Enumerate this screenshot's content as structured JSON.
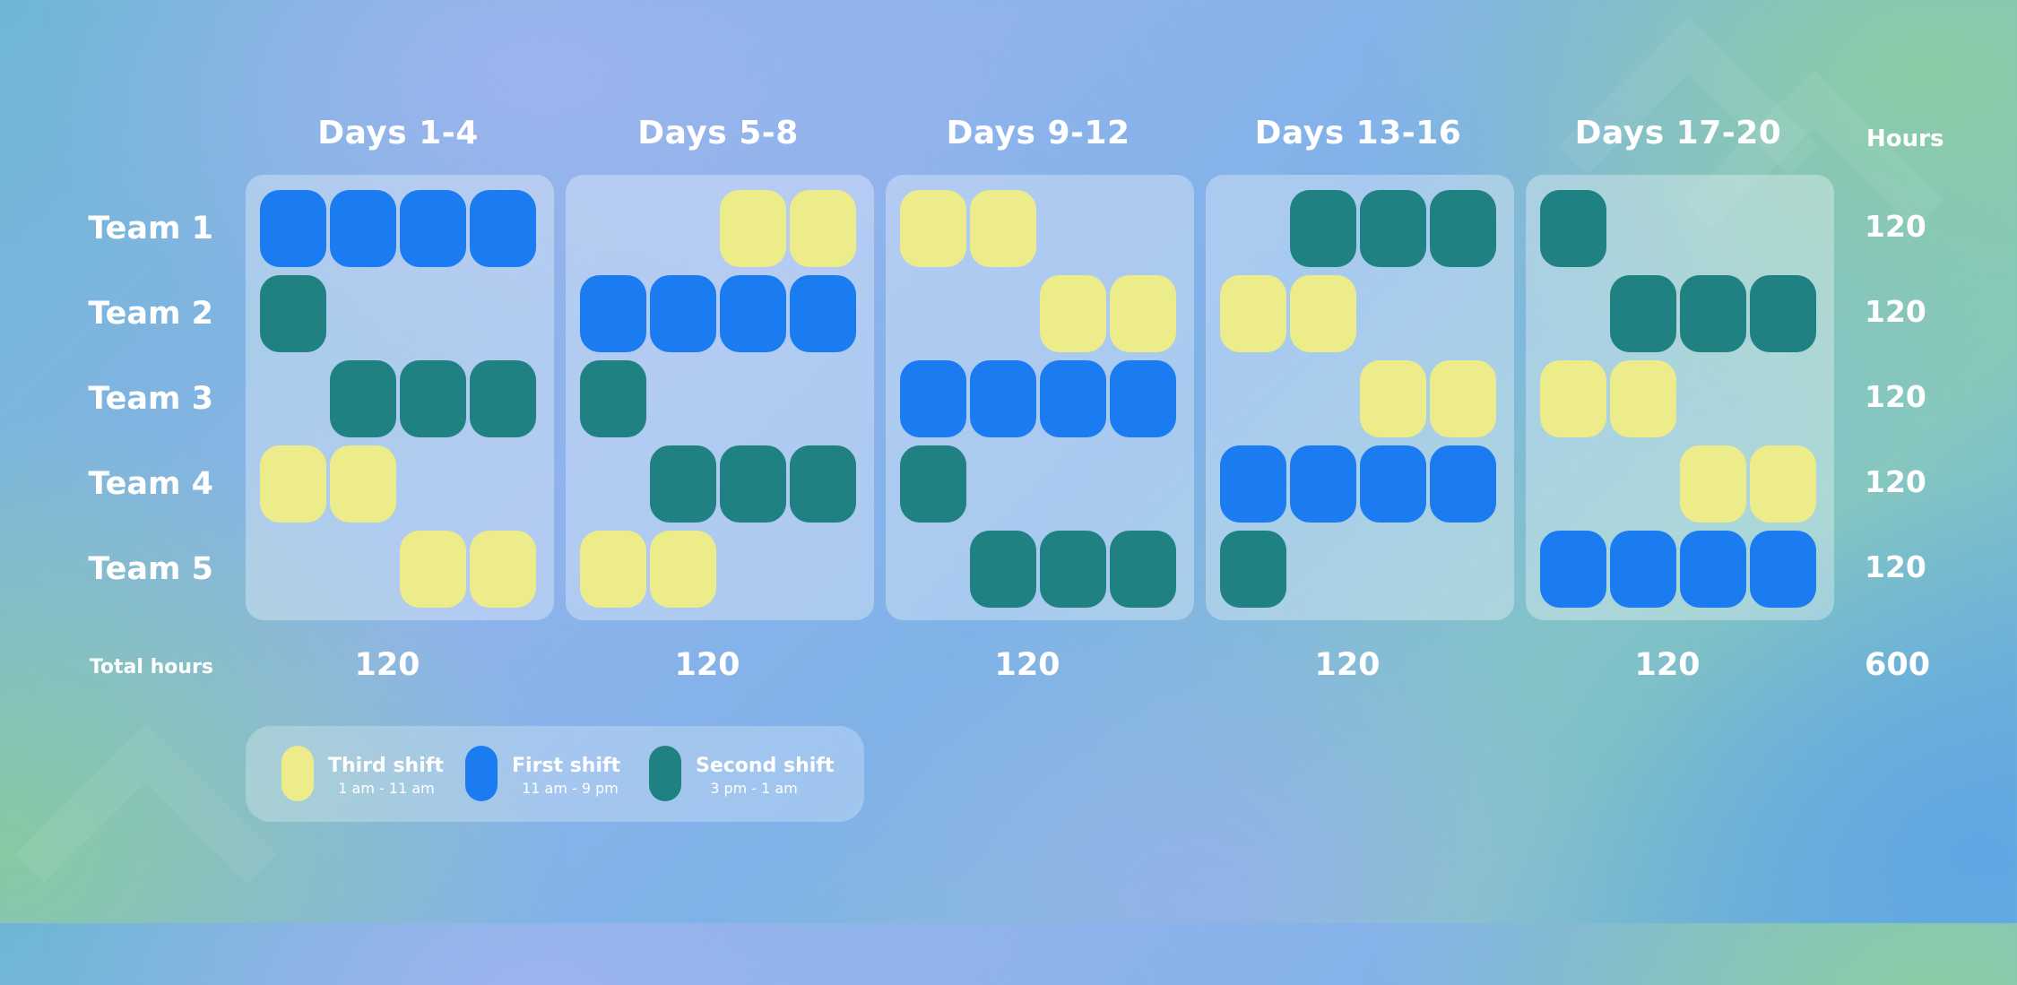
{
  "chart_data": {
    "type": "heatmap",
    "column_headers": [
      "Days 1-4",
      "Days 5-8",
      "Days 9-12",
      "Days 13-16",
      "Days 17-20"
    ],
    "row_labels": [
      "Team 1",
      "Team 2",
      "Team 3",
      "Team 4",
      "Team 5"
    ],
    "hours_header": "Hours",
    "total_label": "Total hours",
    "row_totals": [
      "120",
      "120",
      "120",
      "120",
      "120"
    ],
    "column_totals": [
      "120",
      "120",
      "120",
      "120",
      "120"
    ],
    "grand_total": "600",
    "legend": [
      {
        "key": "third",
        "name": "Third shift",
        "time": "1 am - 11 am",
        "color": "#ecec8a"
      },
      {
        "key": "first",
        "name": "First shift",
        "time": "11 am - 9 pm",
        "color": "#1a7cf0"
      },
      {
        "key": "second",
        "name": "Second shift",
        "time": "3 pm - 1 am",
        "color": "#1f8182"
      }
    ],
    "schedule": [
      [
        [
          "first",
          "first",
          "first",
          "first"
        ],
        [
          "second",
          "",
          "",
          ""
        ],
        [
          "",
          "second",
          "second",
          "second"
        ],
        [
          "third",
          "third",
          "",
          ""
        ],
        [
          "",
          "",
          "third",
          "third"
        ]
      ],
      [
        [
          "",
          "",
          "third",
          "third"
        ],
        [
          "first",
          "first",
          "first",
          "first"
        ],
        [
          "second",
          "",
          "",
          ""
        ],
        [
          "",
          "second",
          "second",
          "second"
        ],
        [
          "third",
          "third",
          "",
          ""
        ]
      ],
      [
        [
          "third",
          "third",
          "",
          ""
        ],
        [
          "",
          "",
          "third",
          "third"
        ],
        [
          "first",
          "first",
          "first",
          "first"
        ],
        [
          "second",
          "",
          "",
          ""
        ],
        [
          "",
          "second",
          "second",
          "second"
        ]
      ],
      [
        [
          "",
          "second",
          "second",
          "second"
        ],
        [
          "third",
          "third",
          "",
          ""
        ],
        [
          "",
          "",
          "third",
          "third"
        ],
        [
          "first",
          "first",
          "first",
          "first"
        ],
        [
          "second",
          "",
          "",
          ""
        ]
      ],
      [
        [
          "second",
          "",
          "",
          ""
        ],
        [
          "",
          "second",
          "second",
          "second"
        ],
        [
          "third",
          "third",
          "",
          ""
        ],
        [
          "",
          "",
          "third",
          "third"
        ],
        [
          "first",
          "first",
          "first",
          "first"
        ]
      ]
    ]
  }
}
